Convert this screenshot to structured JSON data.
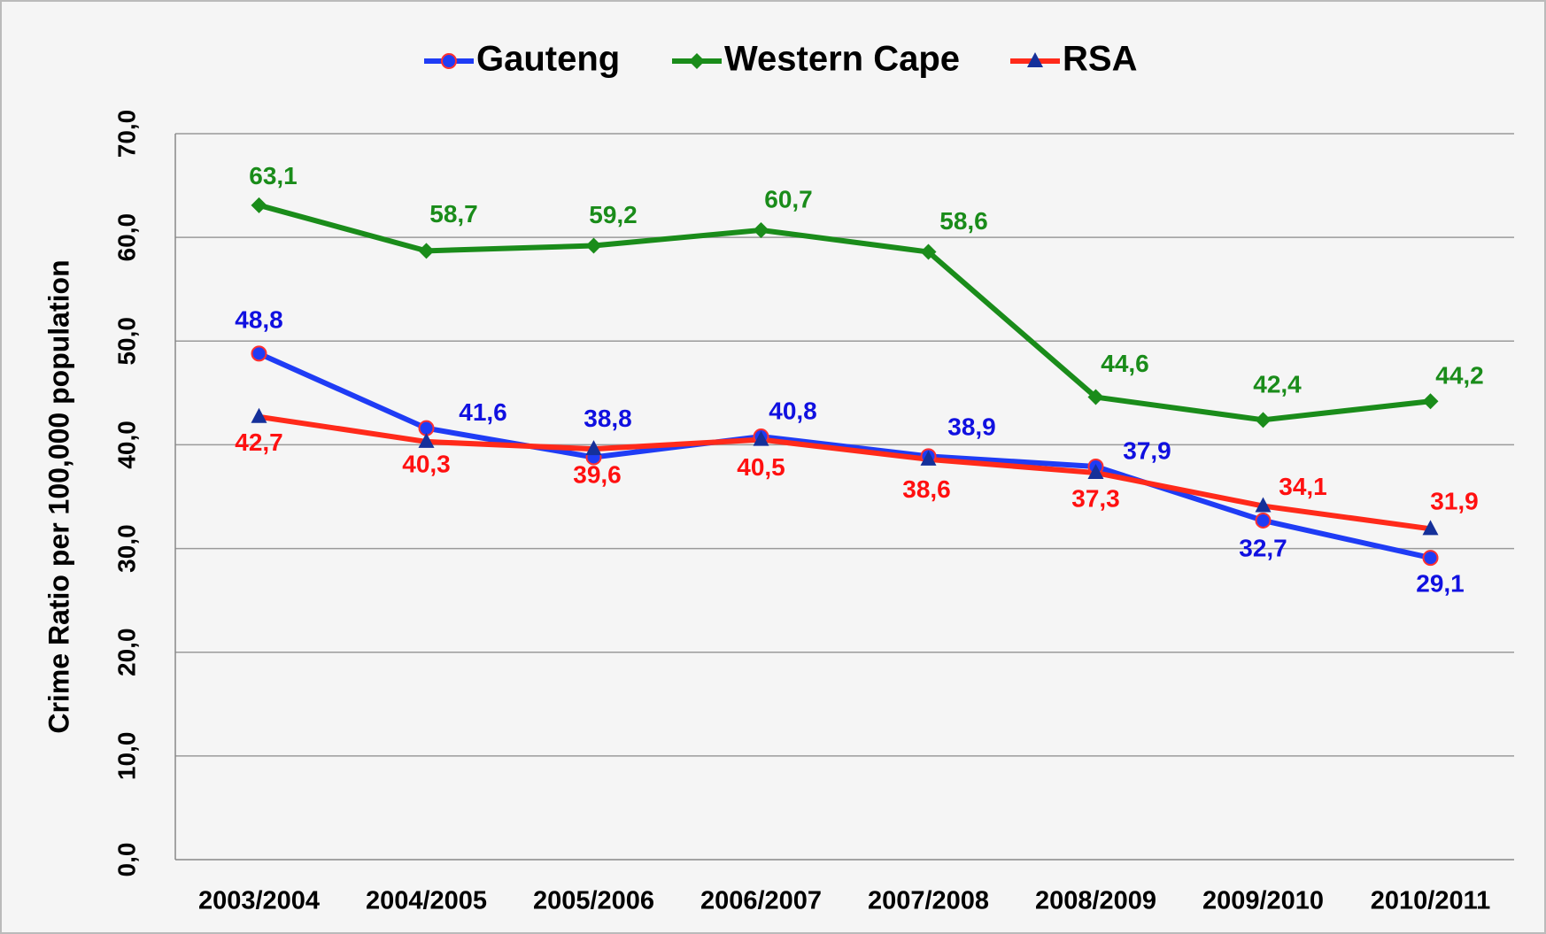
{
  "chart_data": {
    "type": "line",
    "y_axis_label": "Crime Ratio per 100,000 population",
    "categories": [
      "2003/2004",
      "2004/2005",
      "2005/2006",
      "2006/2007",
      "2007/2008",
      "2008/2009",
      "2009/2010",
      "2010/2011"
    ],
    "series": [
      {
        "name": "Gauteng",
        "color": "#1f3cf5",
        "values": [
          48.8,
          41.6,
          38.8,
          40.8,
          38.9,
          37.9,
          32.7,
          29.1
        ],
        "value_labels": [
          "48,8",
          "41,6",
          "38,8",
          "40,8",
          "38,9",
          "37,9",
          "32,7",
          "29,1"
        ]
      },
      {
        "name": "Western Cape",
        "color": "#1a8c1a",
        "values": [
          63.1,
          58.7,
          59.2,
          60.7,
          58.6,
          44.6,
          42.4,
          44.2
        ],
        "value_labels": [
          "63,1",
          "58,7",
          "59,2",
          "60,7",
          "58,6",
          "44,6",
          "42,4",
          "44,2"
        ]
      },
      {
        "name": "RSA",
        "color": "#ff2a1a",
        "values": [
          42.7,
          40.3,
          39.6,
          40.5,
          38.6,
          37.3,
          34.1,
          31.9
        ],
        "value_labels": [
          "42,7",
          "40,3",
          "39,6",
          "40,5",
          "38,6",
          "37,3",
          "34,1",
          "31,9"
        ]
      }
    ],
    "ylim": [
      0,
      70
    ],
    "yticks": [
      {
        "value": 0,
        "label": "0,0"
      },
      {
        "value": 10,
        "label": "10,0"
      },
      {
        "value": 20,
        "label": "20,0"
      },
      {
        "value": 30,
        "label": "30,0"
      },
      {
        "value": 40,
        "label": "40,0"
      },
      {
        "value": 50,
        "label": "50,0"
      },
      {
        "value": 60,
        "label": "60,0"
      },
      {
        "value": 70,
        "label": "70,0"
      }
    ],
    "grid": true,
    "legend": "top"
  }
}
